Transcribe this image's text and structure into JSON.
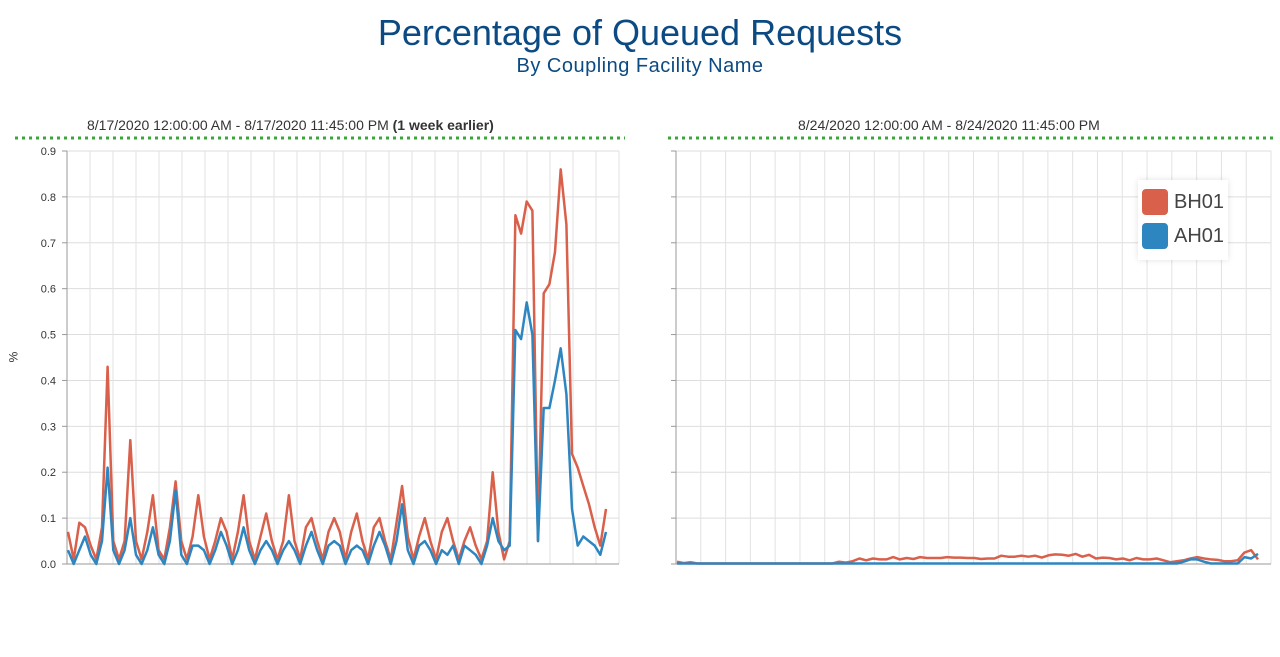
{
  "title": "Percentage of Queued Requests",
  "subtitle": "By Coupling Facility Name",
  "colors": {
    "BH01": "#d9604a",
    "AH01": "#2e86c1",
    "title": "#0b4a82",
    "divider": "#3aa63a"
  },
  "chart_data": [
    {
      "type": "line",
      "heading": "8/17/2020 12:00:00 AM - 8/17/2020 11:45:00 PM",
      "heading_note": "(1 week earlier)",
      "ylabel": "%",
      "ylim": [
        0,
        0.9
      ],
      "yticks": [
        "0.0",
        "0.1",
        "0.2",
        "0.3",
        "0.4",
        "0.5",
        "0.6",
        "0.7",
        "0.8",
        "0.9"
      ],
      "grid": true,
      "series": [
        {
          "name": "BH01",
          "values": [
            0.07,
            0.01,
            0.09,
            0.08,
            0.04,
            0.01,
            0.08,
            0.43,
            0.05,
            0.01,
            0.05,
            0.27,
            0.05,
            0.01,
            0.07,
            0.15,
            0.03,
            0.01,
            0.08,
            0.18,
            0.05,
            0.01,
            0.06,
            0.15,
            0.06,
            0.01,
            0.05,
            0.1,
            0.07,
            0.01,
            0.07,
            0.15,
            0.05,
            0.01,
            0.06,
            0.11,
            0.05,
            0.01,
            0.05,
            0.15,
            0.05,
            0.01,
            0.08,
            0.1,
            0.05,
            0.01,
            0.07,
            0.1,
            0.07,
            0.01,
            0.07,
            0.11,
            0.05,
            0.01,
            0.08,
            0.1,
            0.05,
            0.01,
            0.09,
            0.17,
            0.06,
            0.01,
            0.06,
            0.1,
            0.05,
            0.01,
            0.07,
            0.1,
            0.05,
            0.01,
            0.05,
            0.08,
            0.04,
            0.01,
            0.05,
            0.2,
            0.07,
            0.01,
            0.05,
            0.76,
            0.72,
            0.79,
            0.77,
            0.05,
            0.59,
            0.61,
            0.68,
            0.86,
            0.74,
            0.24,
            0.21,
            0.17,
            0.13,
            0.08,
            0.04,
            0.12
          ]
        },
        {
          "name": "AH01",
          "values": [
            0.03,
            0.0,
            0.03,
            0.06,
            0.02,
            0.0,
            0.05,
            0.21,
            0.03,
            0.0,
            0.03,
            0.1,
            0.02,
            0.0,
            0.03,
            0.08,
            0.02,
            0.0,
            0.05,
            0.16,
            0.02,
            0.0,
            0.04,
            0.04,
            0.03,
            0.0,
            0.03,
            0.07,
            0.04,
            0.0,
            0.03,
            0.08,
            0.03,
            0.0,
            0.03,
            0.05,
            0.03,
            0.0,
            0.03,
            0.05,
            0.03,
            0.0,
            0.04,
            0.07,
            0.03,
            0.0,
            0.04,
            0.05,
            0.04,
            0.0,
            0.03,
            0.04,
            0.03,
            0.0,
            0.04,
            0.07,
            0.04,
            0.0,
            0.05,
            0.13,
            0.03,
            0.0,
            0.04,
            0.05,
            0.03,
            0.0,
            0.03,
            0.02,
            0.04,
            0.0,
            0.04,
            0.03,
            0.02,
            0.0,
            0.04,
            0.1,
            0.05,
            0.03,
            0.04,
            0.51,
            0.49,
            0.57,
            0.5,
            0.05,
            0.34,
            0.34,
            0.4,
            0.47,
            0.37,
            0.12,
            0.04,
            0.06,
            0.05,
            0.04,
            0.02,
            0.07
          ]
        }
      ]
    },
    {
      "type": "line",
      "heading": "8/24/2020 12:00:00 AM - 8/24/2020 11:45:00 PM",
      "ylim": [
        0,
        0.9
      ],
      "grid": true,
      "legend": "top-right",
      "series": [
        {
          "name": "BH01",
          "values": [
            0.005,
            0.002,
            0.004,
            0.001,
            0.001,
            0.001,
            0.001,
            0.001,
            0.001,
            0.001,
            0.001,
            0.001,
            0.001,
            0.001,
            0.001,
            0.001,
            0.001,
            0.001,
            0.001,
            0.001,
            0.001,
            0.001,
            0.001,
            0.001,
            0.005,
            0.003,
            0.006,
            0.012,
            0.008,
            0.012,
            0.01,
            0.01,
            0.015,
            0.01,
            0.013,
            0.011,
            0.015,
            0.013,
            0.013,
            0.013,
            0.015,
            0.014,
            0.014,
            0.013,
            0.013,
            0.011,
            0.012,
            0.012,
            0.018,
            0.016,
            0.016,
            0.018,
            0.016,
            0.018,
            0.014,
            0.019,
            0.021,
            0.02,
            0.018,
            0.022,
            0.016,
            0.02,
            0.012,
            0.014,
            0.013,
            0.01,
            0.012,
            0.008,
            0.013,
            0.01,
            0.01,
            0.012,
            0.008,
            0.004,
            0.006,
            0.008,
            0.012,
            0.015,
            0.012,
            0.01,
            0.009,
            0.006,
            0.006,
            0.008,
            0.025,
            0.03,
            0.01
          ]
        },
        {
          "name": "AH01",
          "values": [
            0.001,
            0.001,
            0.001,
            0.001,
            0.001,
            0.001,
            0.001,
            0.001,
            0.001,
            0.001,
            0.001,
            0.001,
            0.001,
            0.001,
            0.001,
            0.001,
            0.001,
            0.001,
            0.001,
            0.001,
            0.001,
            0.001,
            0.001,
            0.001,
            0.001,
            0.001,
            0.001,
            0.001,
            0.001,
            0.001,
            0.001,
            0.001,
            0.001,
            0.001,
            0.001,
            0.001,
            0.001,
            0.001,
            0.001,
            0.001,
            0.001,
            0.001,
            0.001,
            0.001,
            0.001,
            0.001,
            0.001,
            0.001,
            0.001,
            0.001,
            0.001,
            0.001,
            0.001,
            0.001,
            0.001,
            0.001,
            0.001,
            0.001,
            0.001,
            0.001,
            0.001,
            0.001,
            0.001,
            0.001,
            0.001,
            0.001,
            0.001,
            0.001,
            0.001,
            0.001,
            0.001,
            0.001,
            0.001,
            0.001,
            0.001,
            0.005,
            0.01,
            0.01,
            0.005,
            0.001,
            0.001,
            0.001,
            0.001,
            0.001,
            0.015,
            0.012,
            0.022
          ]
        }
      ]
    }
  ]
}
